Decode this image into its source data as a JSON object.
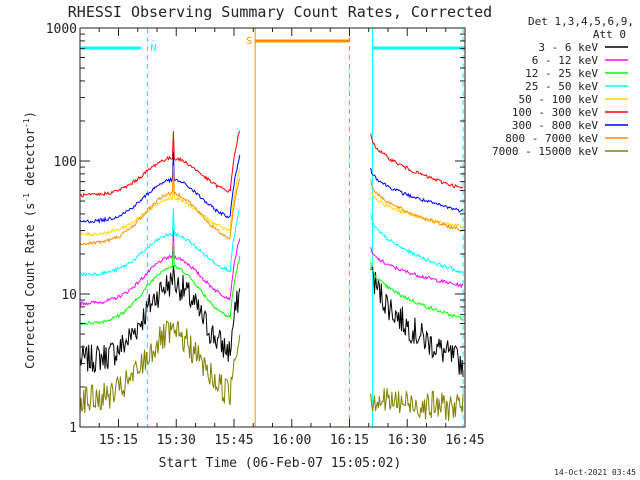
{
  "chart_data": {
    "type": "line",
    "title": "RHESSI Observing Summary Count Rates, Corrected",
    "xlabel": "Start Time (06-Feb-07 15:05:02)",
    "ylabel": "Corrected Count Rate (s",
    "ylabel_sup1": "-1",
    "ylabel_mid": " detector",
    "ylabel_sup2": "-1",
    "ylabel_end": ")",
    "yscale": "log",
    "ylim": [
      1,
      1000
    ],
    "xlim_minutes": [
      0,
      100
    ],
    "x_ticks": [
      {
        "m": 10,
        "label": "15:15"
      },
      {
        "m": 25,
        "label": "15:30"
      },
      {
        "m": 40,
        "label": "15:45"
      },
      {
        "m": 55,
        "label": "16:00"
      },
      {
        "m": 70,
        "label": "16:15"
      },
      {
        "m": 85,
        "label": "16:30"
      },
      {
        "m": 100,
        "label": "16:45"
      }
    ],
    "y_ticks": [
      {
        "v": 1,
        "label": "1"
      },
      {
        "v": 10,
        "label": "10"
      },
      {
        "v": 100,
        "label": "100"
      },
      {
        "v": 1000,
        "label": "1000"
      }
    ],
    "grid": false,
    "legend": {
      "placement": "right",
      "header1": "Det 1,3,4,5,6,9,",
      "header2": "Att 0"
    },
    "series": [
      {
        "name": "3 - 6 keV",
        "color": "#000000",
        "base_pre": 3.2,
        "peak": 12,
        "base_post": 18,
        "tail_post": 3
      },
      {
        "name": "6 - 12 keV",
        "color": "#ff00ff",
        "base_pre": 8.5,
        "peak": 19,
        "base_post": 22,
        "tail_post": 11.5
      },
      {
        "name": "12 - 25 keV",
        "color": "#00ff00",
        "base_pre": 6,
        "peak": 16,
        "base_post": 17,
        "tail_post": 6.5
      },
      {
        "name": "25 - 50 keV",
        "color": "#00ffff",
        "base_pre": 14,
        "peak": 28,
        "base_post": 40,
        "tail_post": 14.5
      },
      {
        "name": "50 - 100 keV",
        "color": "#ffd700",
        "base_pre": 28,
        "peak": 52,
        "base_post": 60,
        "tail_post": 32
      },
      {
        "name": "100 - 300 keV",
        "color": "#ff0000",
        "base_pre": 55,
        "peak": 105,
        "base_post": 160,
        "tail_post": 62
      },
      {
        "name": "300 - 800 keV",
        "color": "#0000ff",
        "base_pre": 35,
        "peak": 72,
        "base_post": 90,
        "tail_post": 42
      },
      {
        "name": "800 - 7000 keV",
        "color": "#ff8c00",
        "base_pre": 24,
        "peak": 57,
        "base_post": 72,
        "tail_post": 30
      },
      {
        "name": "7000 - 15000 keV",
        "color": "#808000",
        "base_pre": 1.6,
        "peak": 5,
        "base_post": 1.7,
        "tail_post": 1.4
      }
    ],
    "data_gap_minutes": [
      41.5,
      75.5
    ],
    "annotations": [
      {
        "label": "N",
        "color": "#00ffff",
        "bar": [
          0,
          17.5
        ],
        "lines": [
          17.5,
          76,
          99.5
        ],
        "solid_line": 76
      },
      {
        "label": "S",
        "color": "#ff8c00",
        "bar": [
          45.5,
          70
        ],
        "lines": [
          45.5,
          70
        ]
      }
    ],
    "footer_date": "14-Oct-2021 03:45"
  }
}
